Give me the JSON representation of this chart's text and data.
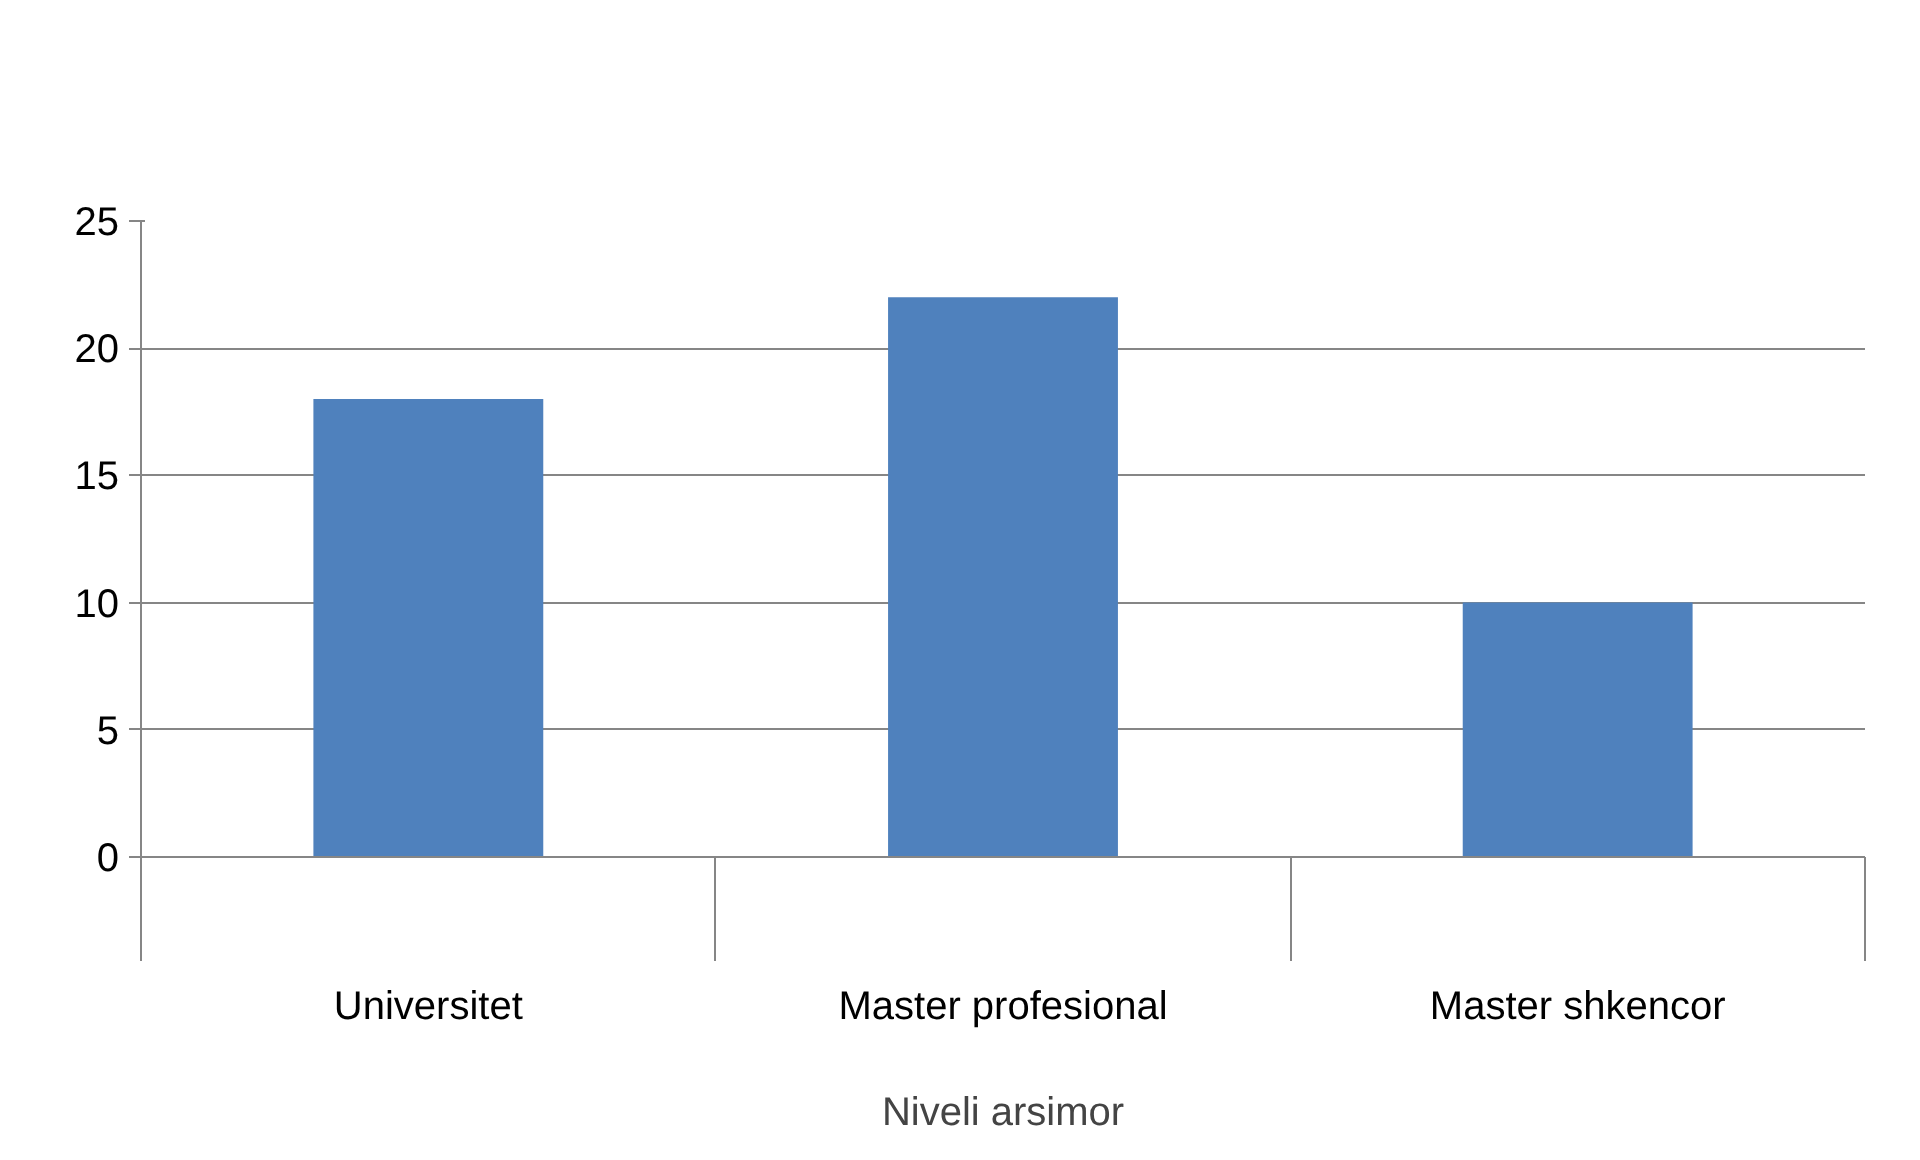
{
  "chart_data": {
    "type": "bar",
    "categories": [
      "Universitet",
      "Master profesional",
      "Master shkencor"
    ],
    "values": [
      18,
      22,
      10
    ],
    "color": "#4f81bd",
    "xlabel": "Niveli arsimor",
    "ylim": [
      0,
      25
    ],
    "yticks": [
      0,
      5,
      10,
      15,
      20,
      25
    ],
    "grid": "y"
  }
}
